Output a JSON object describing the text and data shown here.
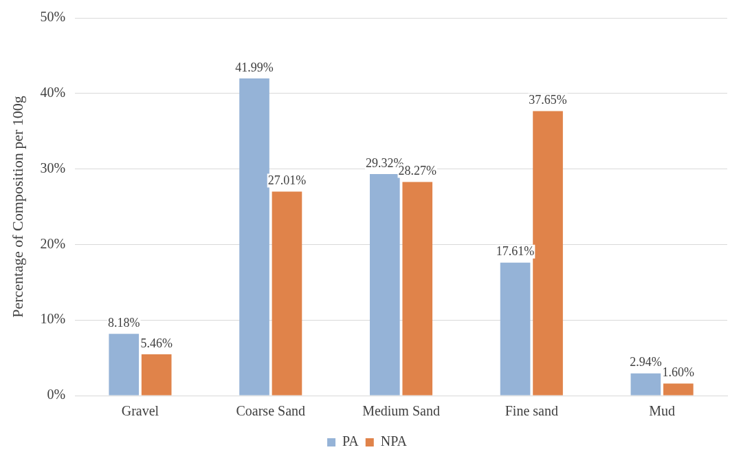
{
  "chart_data": {
    "type": "bar",
    "ylabel": "Percentage of Composition per 100g",
    "categories": [
      "Gravel",
      "Coarse Sand",
      "Medium Sand",
      "Fine sand",
      "Mud"
    ],
    "series": [
      {
        "name": "PA",
        "color": "#95b3d7",
        "values": [
          8.18,
          41.99,
          29.32,
          17.61,
          2.94
        ],
        "value_labels": [
          "8.18%",
          "41.99%",
          "29.32%",
          "17.61%",
          "2.94%"
        ]
      },
      {
        "name": "NPA",
        "color": "#e0834a",
        "values": [
          5.46,
          27.01,
          28.27,
          37.65,
          1.6
        ],
        "value_labels": [
          "5.46%",
          "27.01%",
          "28.27%",
          "37.65%",
          "1.60%"
        ]
      }
    ],
    "ylim": [
      0,
      50
    ],
    "yticks": [
      {
        "value": 0,
        "label": "0%"
      },
      {
        "value": 10,
        "label": "10%"
      },
      {
        "value": 20,
        "label": "20%"
      },
      {
        "value": 30,
        "label": "30%"
      },
      {
        "value": 40,
        "label": "40%"
      },
      {
        "value": 50,
        "label": "50%"
      }
    ],
    "grid": "y",
    "legend": "bottom"
  }
}
